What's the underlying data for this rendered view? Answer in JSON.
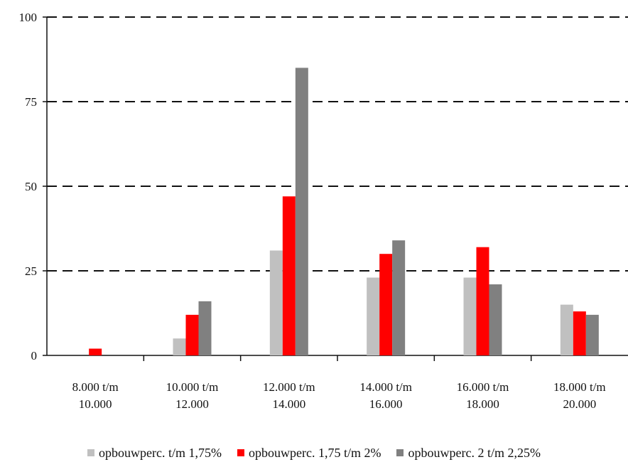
{
  "chart_data": {
    "type": "bar",
    "categories": [
      [
        "8.000 t/m",
        "10.000"
      ],
      [
        "10.000 t/m",
        "12.000"
      ],
      [
        "12.000 t/m",
        "14.000"
      ],
      [
        "14.000 t/m",
        "16.000"
      ],
      [
        "16.000 t/m",
        "18.000"
      ],
      [
        "18.000 t/m",
        "20.000"
      ]
    ],
    "series": [
      {
        "name": "opbouwperc. t/m 1,75%",
        "color": "#c0c0c0",
        "values": [
          0,
          5,
          31,
          23,
          23,
          15
        ]
      },
      {
        "name": "opbouwperc. 1,75 t/m 2%",
        "color": "#ff0000",
        "values": [
          2,
          12,
          47,
          30,
          32,
          13
        ]
      },
      {
        "name": "opbouwperc. 2 t/m 2,25%",
        "color": "#808080",
        "values": [
          0,
          16,
          85,
          34,
          21,
          12
        ]
      }
    ],
    "yticks": [
      "0",
      "25",
      "50",
      "75",
      "100"
    ],
    "ylim": [
      0,
      100
    ],
    "grid": "dashed horizontal",
    "legend": "bottom"
  }
}
